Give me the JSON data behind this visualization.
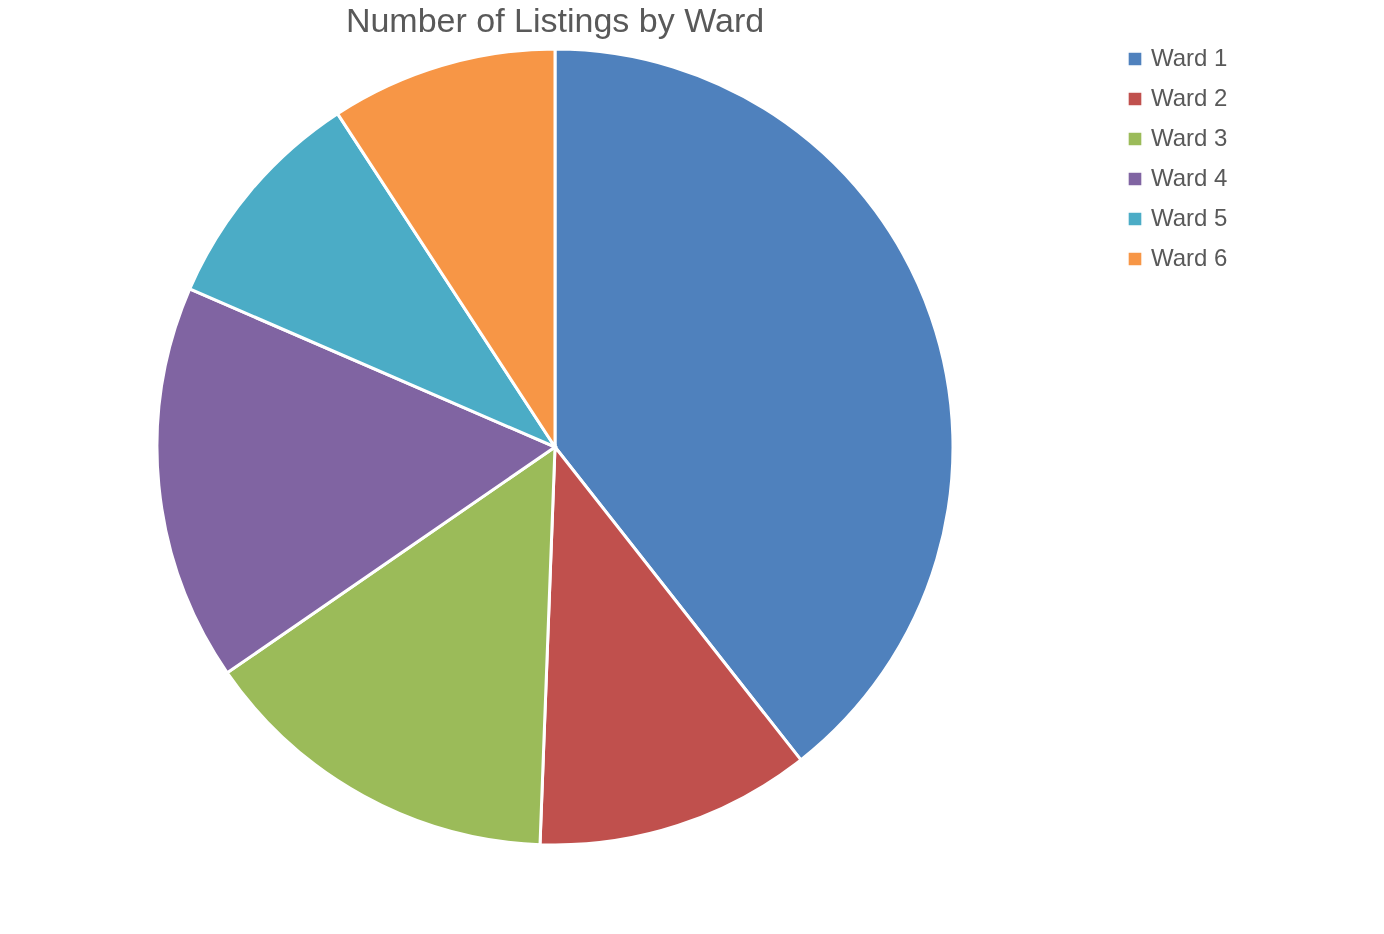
{
  "chart_data": {
    "type": "pie",
    "title": "Number of Listings by Ward",
    "categories": [
      "Ward 1",
      "Ward 2",
      "Ward 3",
      "Ward 4",
      "Ward 5",
      "Ward 6"
    ],
    "values": [
      39.4,
      11.2,
      14.8,
      16.1,
      9.3,
      9.2
    ],
    "colors": [
      "#4f81bd",
      "#c0504d",
      "#9bbb59",
      "#8064a2",
      "#4bacc6",
      "#f79646"
    ],
    "legend": "right"
  }
}
